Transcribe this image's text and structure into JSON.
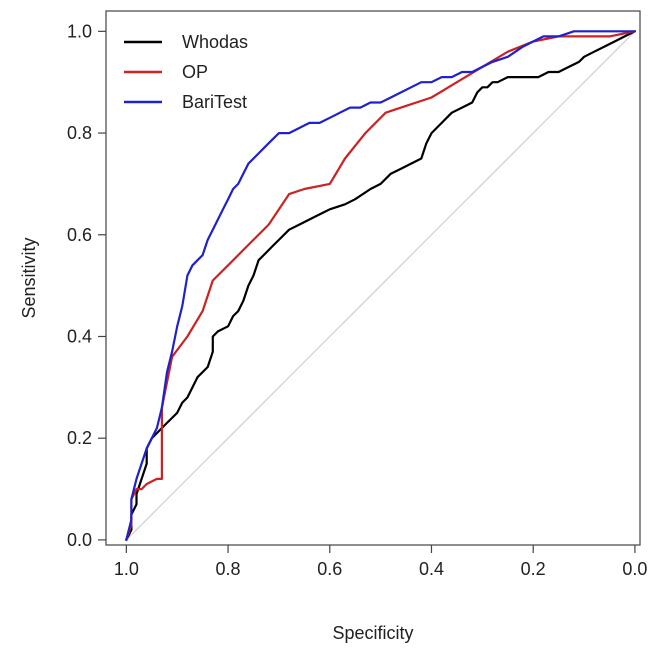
{
  "chart_data": {
    "type": "line",
    "title": "",
    "xlabel": "Specificity",
    "ylabel": "Sensitivity",
    "xlim": [
      1.04,
      -0.01
    ],
    "ylim": [
      -0.01,
      1.04
    ],
    "x_reversed": true,
    "xticks": [
      "1.0",
      "0.8",
      "0.6",
      "0.4",
      "0.2",
      "0.0"
    ],
    "xtick_values": [
      1.0,
      0.8,
      0.6,
      0.4,
      0.2,
      0.0
    ],
    "yticks": [
      "0.0",
      "0.2",
      "0.4",
      "0.6",
      "0.8",
      "1.0"
    ],
    "ytick_values": [
      0.0,
      0.2,
      0.4,
      0.6,
      0.8,
      1.0
    ],
    "grid": false,
    "legend_position": "top-left",
    "diagonal_reference": true,
    "diagonal_color": "#c8c8c8",
    "series": [
      {
        "name": "Whodas",
        "color": "#000000",
        "x": [
          1.0,
          0.99,
          0.99,
          0.98,
          0.98,
          0.97,
          0.96,
          0.96,
          0.95,
          0.94,
          0.93,
          0.92,
          0.91,
          0.9,
          0.89,
          0.88,
          0.87,
          0.86,
          0.85,
          0.84,
          0.83,
          0.83,
          0.82,
          0.8,
          0.79,
          0.78,
          0.77,
          0.76,
          0.75,
          0.74,
          0.73,
          0.71,
          0.7,
          0.68,
          0.66,
          0.64,
          0.62,
          0.6,
          0.57,
          0.55,
          0.52,
          0.5,
          0.48,
          0.46,
          0.44,
          0.42,
          0.41,
          0.4,
          0.39,
          0.38,
          0.37,
          0.36,
          0.34,
          0.32,
          0.31,
          0.3,
          0.29,
          0.28,
          0.27,
          0.25,
          0.23,
          0.21,
          0.19,
          0.17,
          0.15,
          0.13,
          0.11,
          0.1,
          0.08,
          0.06,
          0.04,
          0.02,
          0.0
        ],
        "y": [
          0.0,
          0.02,
          0.05,
          0.07,
          0.09,
          0.12,
          0.15,
          0.18,
          0.2,
          0.21,
          0.22,
          0.23,
          0.24,
          0.25,
          0.27,
          0.28,
          0.3,
          0.32,
          0.33,
          0.34,
          0.37,
          0.4,
          0.41,
          0.42,
          0.44,
          0.45,
          0.47,
          0.5,
          0.52,
          0.55,
          0.56,
          0.58,
          0.59,
          0.61,
          0.62,
          0.63,
          0.64,
          0.65,
          0.66,
          0.67,
          0.69,
          0.7,
          0.72,
          0.73,
          0.74,
          0.75,
          0.78,
          0.8,
          0.81,
          0.82,
          0.83,
          0.84,
          0.85,
          0.86,
          0.88,
          0.89,
          0.89,
          0.9,
          0.9,
          0.91,
          0.91,
          0.91,
          0.91,
          0.92,
          0.92,
          0.93,
          0.94,
          0.95,
          0.96,
          0.97,
          0.98,
          0.99,
          1.0
        ]
      },
      {
        "name": "OP",
        "color": "#cc2222",
        "x": [
          1.0,
          0.99,
          0.99,
          0.98,
          0.97,
          0.96,
          0.94,
          0.93,
          0.93,
          0.92,
          0.91,
          0.88,
          0.85,
          0.83,
          0.8,
          0.76,
          0.72,
          0.68,
          0.65,
          0.6,
          0.57,
          0.53,
          0.49,
          0.46,
          0.4,
          0.35,
          0.3,
          0.25,
          0.2,
          0.15,
          0.1,
          0.05,
          0.0
        ],
        "y": [
          0.0,
          0.03,
          0.08,
          0.1,
          0.1,
          0.11,
          0.12,
          0.12,
          0.26,
          0.31,
          0.36,
          0.4,
          0.45,
          0.51,
          0.54,
          0.58,
          0.62,
          0.68,
          0.69,
          0.7,
          0.75,
          0.8,
          0.84,
          0.85,
          0.87,
          0.9,
          0.93,
          0.96,
          0.98,
          0.99,
          0.99,
          0.99,
          1.0
        ]
      },
      {
        "name": "BariTest",
        "color": "#2020cc",
        "x": [
          1.0,
          0.99,
          0.99,
          0.98,
          0.97,
          0.96,
          0.95,
          0.94,
          0.93,
          0.92,
          0.91,
          0.9,
          0.89,
          0.88,
          0.87,
          0.86,
          0.85,
          0.84,
          0.83,
          0.82,
          0.81,
          0.8,
          0.79,
          0.78,
          0.77,
          0.76,
          0.75,
          0.74,
          0.72,
          0.7,
          0.68,
          0.66,
          0.64,
          0.62,
          0.6,
          0.58,
          0.56,
          0.54,
          0.52,
          0.5,
          0.48,
          0.46,
          0.44,
          0.42,
          0.4,
          0.38,
          0.36,
          0.34,
          0.32,
          0.3,
          0.28,
          0.25,
          0.22,
          0.2,
          0.18,
          0.15,
          0.12,
          0.1,
          0.07,
          0.04,
          0.0
        ],
        "y": [
          0.0,
          0.04,
          0.08,
          0.12,
          0.15,
          0.18,
          0.2,
          0.22,
          0.26,
          0.33,
          0.37,
          0.42,
          0.46,
          0.52,
          0.54,
          0.55,
          0.56,
          0.59,
          0.61,
          0.63,
          0.65,
          0.67,
          0.69,
          0.7,
          0.72,
          0.74,
          0.75,
          0.76,
          0.78,
          0.8,
          0.8,
          0.81,
          0.82,
          0.82,
          0.83,
          0.84,
          0.85,
          0.85,
          0.86,
          0.86,
          0.87,
          0.88,
          0.89,
          0.9,
          0.9,
          0.91,
          0.91,
          0.92,
          0.92,
          0.93,
          0.94,
          0.95,
          0.97,
          0.98,
          0.99,
          0.99,
          1.0,
          1.0,
          1.0,
          1.0,
          1.0
        ]
      }
    ]
  }
}
